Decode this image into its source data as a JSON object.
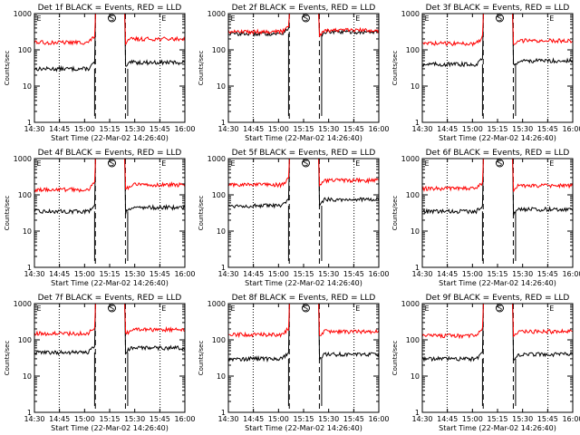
{
  "page": {
    "background": "#ffffff"
  },
  "colors": {
    "events": "#000000",
    "lld": "#ff0000",
    "axis": "#000000"
  },
  "common": {
    "ylabel": "Counts/sec",
    "xlabel": "Start Time (22-Mar-02 14:26:40)",
    "x_ticks": [
      "14:30",
      "14:45",
      "15:00",
      "15:15",
      "15:30",
      "15:45",
      "16:00"
    ],
    "y_ticks": [
      "1",
      "10",
      "100",
      "1000"
    ],
    "markers": [
      "E",
      "S",
      "E"
    ]
  },
  "chart_data": [
    {
      "type": "line",
      "title": "Det 1f BLACK = Events, RED = LLD",
      "ylim": [
        1,
        1000
      ],
      "yscale": "log",
      "series": [
        {
          "name": "Events",
          "color": "#000000",
          "pre_level": 30,
          "post_level": 45
        },
        {
          "name": "LLD",
          "color": "#ff0000",
          "pre_level": 160,
          "post_level": 200
        }
      ]
    },
    {
      "type": "line",
      "title": "Det 2f BLACK = Events, RED = LLD",
      "ylim": [
        1,
        1000
      ],
      "yscale": "log",
      "series": [
        {
          "name": "Events",
          "color": "#000000",
          "pre_level": 280,
          "post_level": 310
        },
        {
          "name": "LLD",
          "color": "#ff0000",
          "pre_level": 320,
          "post_level": 350
        }
      ]
    },
    {
      "type": "line",
      "title": "Det 3f BLACK = Events, RED = LLD",
      "ylim": [
        1,
        1000
      ],
      "yscale": "log",
      "series": [
        {
          "name": "Events",
          "color": "#000000",
          "pre_level": 40,
          "post_level": 50
        },
        {
          "name": "LLD",
          "color": "#ff0000",
          "pre_level": 150,
          "post_level": 180
        }
      ]
    },
    {
      "type": "line",
      "title": "Det 4f BLACK = Events, RED = LLD",
      "ylim": [
        1,
        1000
      ],
      "yscale": "log",
      "series": [
        {
          "name": "Events",
          "color": "#000000",
          "pre_level": 35,
          "post_level": 45
        },
        {
          "name": "LLD",
          "color": "#ff0000",
          "pre_level": 140,
          "post_level": 190
        }
      ]
    },
    {
      "type": "line",
      "title": "Det 5f BLACK = Events, RED = LLD",
      "ylim": [
        1,
        1000
      ],
      "yscale": "log",
      "series": [
        {
          "name": "Events",
          "color": "#000000",
          "pre_level": 50,
          "post_level": 75
        },
        {
          "name": "LLD",
          "color": "#ff0000",
          "pre_level": 190,
          "post_level": 250
        }
      ]
    },
    {
      "type": "line",
      "title": "Det 6f BLACK = Events, RED = LLD",
      "ylim": [
        1,
        1000
      ],
      "yscale": "log",
      "series": [
        {
          "name": "Events",
          "color": "#000000",
          "pre_level": 35,
          "post_level": 40
        },
        {
          "name": "LLD",
          "color": "#ff0000",
          "pre_level": 150,
          "post_level": 180
        }
      ]
    },
    {
      "type": "line",
      "title": "Det 7f BLACK = Events, RED = LLD",
      "ylim": [
        1,
        1000
      ],
      "yscale": "log",
      "series": [
        {
          "name": "Events",
          "color": "#000000",
          "pre_level": 45,
          "post_level": 60
        },
        {
          "name": "LLD",
          "color": "#ff0000",
          "pre_level": 150,
          "post_level": 190
        }
      ]
    },
    {
      "type": "line",
      "title": "Det 8f BLACK = Events, RED = LLD",
      "ylim": [
        1,
        1000
      ],
      "yscale": "log",
      "series": [
        {
          "name": "Events",
          "color": "#000000",
          "pre_level": 30,
          "post_level": 40
        },
        {
          "name": "LLD",
          "color": "#ff0000",
          "pre_level": 140,
          "post_level": 170
        }
      ]
    },
    {
      "type": "line",
      "title": "Det 9f BLACK = Events, RED = LLD",
      "ylim": [
        1,
        1000
      ],
      "yscale": "log",
      "series": [
        {
          "name": "Events",
          "color": "#000000",
          "pre_level": 30,
          "post_level": 40
        },
        {
          "name": "LLD",
          "color": "#ff0000",
          "pre_level": 130,
          "post_level": 170
        }
      ]
    }
  ]
}
